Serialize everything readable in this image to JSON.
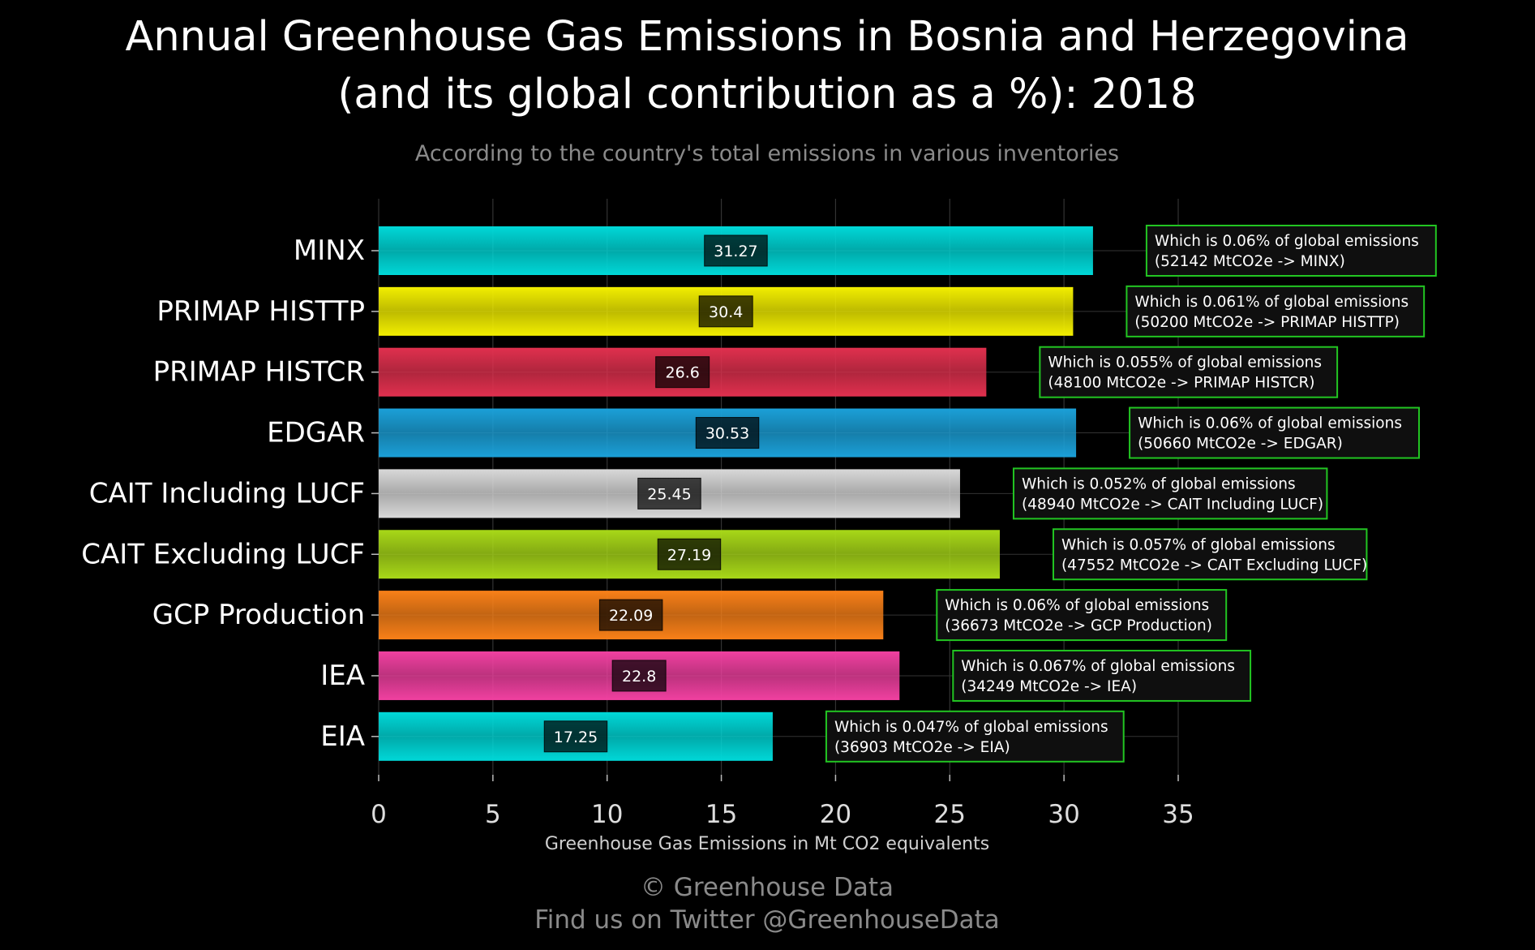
{
  "chart_data": {
    "type": "bar",
    "orientation": "horizontal",
    "title_line1": "Annual Greenhouse Gas Emissions in Bosnia and Herzegovina",
    "title_line2": "(and its global contribution as a %): 2018",
    "subtitle": "According to the country's total emissions in various inventories",
    "xlabel": "Greenhouse Gas Emissions in Mt CO2 equivalents",
    "xlim": [
      0,
      35
    ],
    "xticks": [
      0,
      5,
      10,
      15,
      20,
      25,
      30,
      35
    ],
    "grid": true,
    "categories": [
      "MINX",
      "PRIMAP HISTTP",
      "PRIMAP HISTCR",
      "EDGAR",
      "CAIT Including LUCF",
      "CAIT Excluding LUCF",
      "GCP Production",
      "IEA",
      "EIA"
    ],
    "values": [
      31.27,
      30.4,
      26.6,
      30.53,
      25.45,
      27.19,
      22.09,
      22.8,
      17.25
    ],
    "value_labels": [
      "31.27",
      "30.4",
      "26.6",
      "30.53",
      "25.45",
      "27.19",
      "22.09",
      "22.8",
      "17.25"
    ],
    "bar_colors": [
      "#00d8d8",
      "#f2ee00",
      "#e0304e",
      "#1ba0d8",
      "#d8d8d8",
      "#a8d818",
      "#f88018",
      "#f040a0",
      "#00d8d8"
    ],
    "annotations": [
      {
        "line1": "Which is 0.06% of global emissions",
        "line2": "(52142 MtCO2e -> MINX)"
      },
      {
        "line1": "Which is 0.061% of global emissions",
        "line2": "(50200 MtCO2e -> PRIMAP HISTTP)"
      },
      {
        "line1": "Which is 0.055% of global emissions",
        "line2": "(48100 MtCO2e -> PRIMAP HISTCR)"
      },
      {
        "line1": "Which is 0.06% of global emissions",
        "line2": "(50660 MtCO2e -> EDGAR)"
      },
      {
        "line1": "Which is 0.052% of global emissions",
        "line2": "(48940 MtCO2e -> CAIT Including LUCF)"
      },
      {
        "line1": "Which is 0.057% of global emissions",
        "line2": "(47552 MtCO2e -> CAIT Excluding LUCF)"
      },
      {
        "line1": "Which is 0.06% of global emissions",
        "line2": "(36673 MtCO2e -> GCP Production)"
      },
      {
        "line1": "Which is 0.067% of global emissions",
        "line2": "(34249 MtCO2e -> IEA)"
      },
      {
        "line1": "Which is 0.047% of global emissions",
        "line2": "(36903 MtCO2e -> EIA)"
      }
    ],
    "annotation_border_color": "#22c522",
    "connector_color": "#22c522"
  },
  "footer": {
    "line1": "© Greenhouse Data",
    "line2": "Find us on Twitter @GreenhouseData"
  },
  "colors": {
    "background": "#000000",
    "title": "#ffffff",
    "subtitle": "#8a8a8a",
    "footer": "#8a8a8a",
    "grid": "#333333",
    "annotation_bg": "#0f0f0f"
  }
}
